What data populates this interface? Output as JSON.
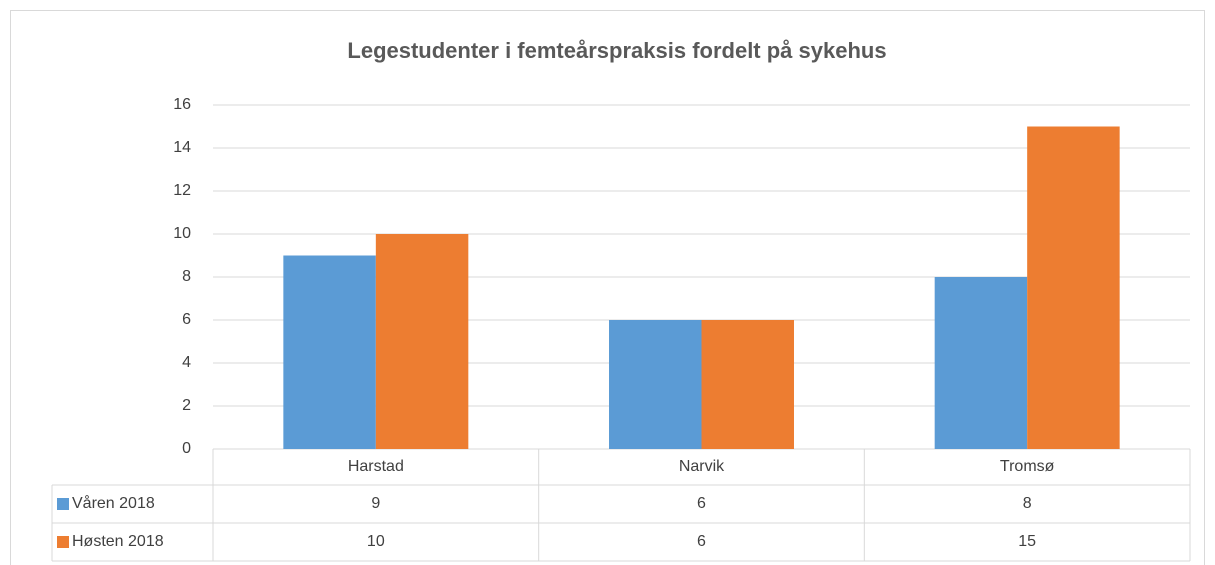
{
  "chart_data": {
    "type": "bar",
    "title": "Legestudenter i femteårspraksis fordelt på sykehus",
    "categories": [
      "Harstad",
      "Narvik",
      "Tromsø"
    ],
    "series": [
      {
        "name": "Våren 2018",
        "color": "#5b9bd5",
        "values": [
          9,
          6,
          8
        ]
      },
      {
        "name": "Høsten 2018",
        "color": "#ed7d31",
        "values": [
          10,
          6,
          15
        ]
      }
    ],
    "ylim": [
      0,
      16
    ],
    "yticks": [
      0,
      2,
      4,
      6,
      8,
      10,
      12,
      14,
      16
    ],
    "grid": true,
    "data_table": true
  }
}
